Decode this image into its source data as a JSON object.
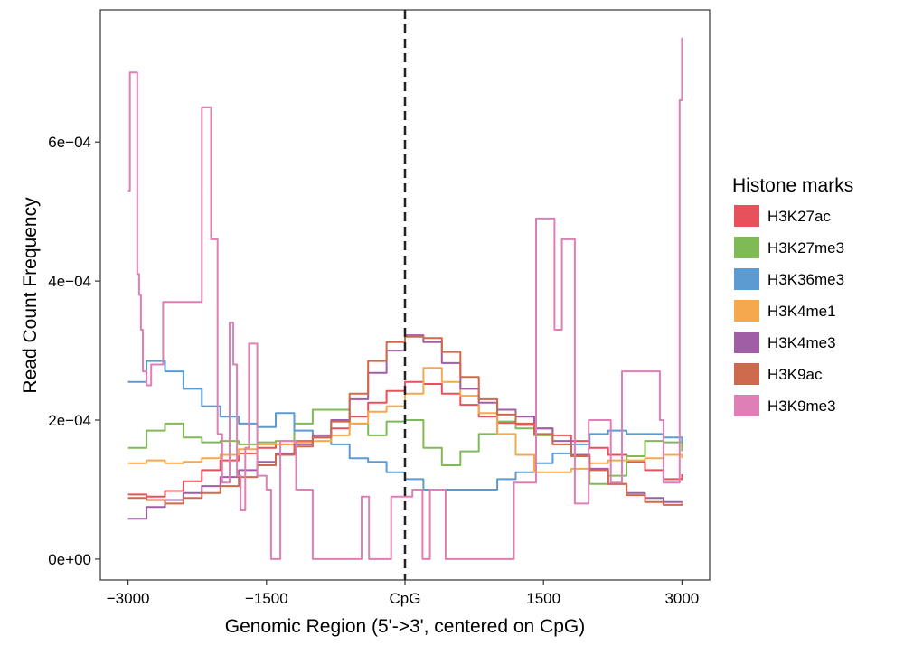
{
  "chart_data": {
    "type": "line",
    "line_shape": "step",
    "xlabel": "Genomic Region (5'->3', centered on CpG)",
    "ylabel": "Read Count Frequency",
    "xlim": [
      -3300,
      3300
    ],
    "ylim": [
      -3e-05,
      0.00079
    ],
    "x_ticks": [
      -3000,
      -1500,
      0,
      1500,
      3000
    ],
    "x_tick_labels": [
      "-3000",
      "-1500",
      "CpG",
      "1500",
      "3000"
    ],
    "y_ticks": [
      0,
      0.0002,
      0.0004,
      0.0006
    ],
    "y_tick_labels": [
      "0e+00",
      "2e-04",
      "4e-04",
      "6e-04"
    ],
    "grid": false,
    "vline": {
      "x": 0,
      "style": "dashed"
    },
    "legend": {
      "title": "Histone marks",
      "position": "right",
      "entries": [
        "H3K27ac",
        "H3K27me3",
        "H3K36me3",
        "H3K4me1",
        "H3K4me3",
        "H3K9ac",
        "H3K9me3"
      ]
    },
    "series": [
      {
        "name": "H3K27ac",
        "color": "#e8505b",
        "x": [
          -3000,
          -2800,
          -2600,
          -2400,
          -2200,
          -2000,
          -1800,
          -1600,
          -1400,
          -1200,
          -1000,
          -800,
          -600,
          -400,
          -200,
          0,
          200,
          400,
          600,
          800,
          1000,
          1200,
          1400,
          1600,
          1800,
          2000,
          2200,
          2400,
          2600,
          2800,
          3000
        ],
        "values": [
          9.3e-05,
          9e-05,
          9.8e-05,
          0.000112,
          0.000128,
          0.000142,
          0.000152,
          0.00016,
          0.000165,
          0.00017,
          0.000175,
          0.000188,
          0.000205,
          0.000225,
          0.000242,
          0.000255,
          0.000252,
          0.000238,
          0.000222,
          0.000205,
          0.000196,
          0.000193,
          0.000188,
          0.000178,
          0.00017,
          0.00016,
          0.00015,
          0.00014,
          0.000128,
          0.000115,
          0.000122
        ]
      },
      {
        "name": "H3K27me3",
        "color": "#80ba56",
        "x": [
          -3000,
          -2800,
          -2600,
          -2400,
          -2200,
          -2000,
          -1800,
          -1600,
          -1400,
          -1200,
          -1000,
          -800,
          -600,
          -400,
          -200,
          0,
          200,
          400,
          600,
          800,
          1000,
          1200,
          1400,
          1600,
          1800,
          2000,
          2200,
          2400,
          2600,
          2800,
          3000
        ],
        "values": [
          0.00016,
          0.000185,
          0.000195,
          0.000175,
          0.000168,
          0.00017,
          0.000165,
          0.000168,
          0.00017,
          0.000195,
          0.000215,
          0.000215,
          0.000195,
          0.000178,
          0.000198,
          0.0002,
          0.00016,
          0.000135,
          0.000155,
          0.00018,
          0.000198,
          0.000188,
          0.000178,
          0.000165,
          0.000148,
          0.000108,
          0.00012,
          0.000148,
          0.00017,
          0.000168,
          0.000155
        ]
      },
      {
        "name": "H3K36me3",
        "color": "#5b9bd1",
        "x": [
          -3000,
          -2800,
          -2600,
          -2400,
          -2200,
          -2000,
          -1800,
          -1600,
          -1400,
          -1200,
          -1000,
          -800,
          -600,
          -400,
          -200,
          0,
          200,
          400,
          600,
          800,
          1000,
          1200,
          1400,
          1600,
          1800,
          2000,
          2200,
          2400,
          2600,
          2800,
          3000
        ],
        "values": [
          0.000255,
          0.000285,
          0.00027,
          0.000245,
          0.00022,
          0.000205,
          0.000195,
          0.00019,
          0.00021,
          0.000185,
          0.000175,
          0.000165,
          0.000145,
          0.00014,
          0.000125,
          0.000115,
          0.0001,
          0.0001,
          0.0001,
          0.0001,
          0.000115,
          0.000125,
          0.000138,
          0.000152,
          0.000165,
          0.00018,
          0.000185,
          0.00018,
          0.00018,
          0.000175,
          0.000168
        ]
      },
      {
        "name": "H3K4me1",
        "color": "#f5a84c",
        "x": [
          -3000,
          -2800,
          -2600,
          -2400,
          -2200,
          -2000,
          -1800,
          -1600,
          -1400,
          -1200,
          -1000,
          -800,
          -600,
          -400,
          -200,
          0,
          200,
          400,
          600,
          800,
          1000,
          1200,
          1400,
          1600,
          1800,
          2000,
          2200,
          2400,
          2600,
          2800,
          3000
        ],
        "values": [
          0.000138,
          0.000142,
          0.000138,
          0.00014,
          0.000145,
          0.00015,
          0.000158,
          0.000165,
          0.000165,
          0.000168,
          0.00017,
          0.000178,
          0.000195,
          0.000212,
          0.00022,
          0.000238,
          0.000275,
          0.000255,
          0.000235,
          0.00021,
          0.00018,
          0.00015,
          0.000125,
          0.000125,
          0.00013,
          0.000138,
          0.000142,
          0.000142,
          0.000145,
          0.00015,
          0.000145
        ]
      },
      {
        "name": "H3K4me3",
        "color": "#a05fa5",
        "x": [
          -3000,
          -2800,
          -2600,
          -2400,
          -2200,
          -2000,
          -1800,
          -1600,
          -1400,
          -1200,
          -1000,
          -800,
          -600,
          -400,
          -200,
          0,
          200,
          400,
          600,
          800,
          1000,
          1200,
          1400,
          1600,
          1800,
          2000,
          2200,
          2400,
          2600,
          2800,
          3000
        ],
        "values": [
          5.8e-05,
          7.5e-05,
          8.5e-05,
          9.5e-05,
          0.000105,
          0.000118,
          0.000128,
          0.00014,
          0.000152,
          0.000165,
          0.000178,
          0.0002,
          0.00023,
          0.000268,
          0.0003,
          0.000322,
          0.000312,
          0.000282,
          0.000245,
          0.000225,
          0.000215,
          0.000205,
          0.000188,
          0.00017,
          0.00015,
          0.00013,
          0.000108,
          9.5e-05,
          8.8e-05,
          8.2e-05,
          8.3e-05
        ]
      },
      {
        "name": "H3K9ac",
        "color": "#cd6a4b",
        "x": [
          -3000,
          -2800,
          -2600,
          -2400,
          -2200,
          -2000,
          -1800,
          -1600,
          -1400,
          -1200,
          -1000,
          -800,
          -600,
          -400,
          -200,
          0,
          200,
          400,
          600,
          800,
          1000,
          1200,
          1400,
          1600,
          1800,
          2000,
          2200,
          2400,
          2600,
          2800,
          3000
        ],
        "values": [
          8.8e-05,
          8.5e-05,
          8e-05,
          8.8e-05,
          9.5e-05,
          0.000105,
          0.000118,
          0.000135,
          0.00015,
          0.000162,
          0.000175,
          0.000198,
          0.000238,
          0.000285,
          0.000312,
          0.00032,
          0.000318,
          0.000298,
          0.000262,
          0.00023,
          0.000208,
          0.000195,
          0.00018,
          0.000165,
          0.000148,
          0.000128,
          0.000108,
          9.2e-05,
          8.2e-05,
          7.8e-05,
          8e-05
        ]
      },
      {
        "name": "H3K9me3",
        "color": "#de7fb5",
        "x": [
          -3000,
          -2980,
          -2900,
          -2880,
          -2860,
          -2840,
          -2800,
          -2750,
          -2700,
          -2620,
          -2580,
          -2540,
          -2480,
          -2380,
          -2300,
          -2200,
          -2130,
          -2100,
          -2030,
          -1980,
          -1900,
          -1860,
          -1820,
          -1780,
          -1730,
          -1690,
          -1600,
          -1500,
          -1450,
          -1380,
          -1350,
          -1300,
          -1180,
          -1100,
          -1000,
          -950,
          -500,
          -470,
          -430,
          -390,
          -330,
          -240,
          -150,
          -80,
          0,
          60,
          80,
          130,
          190,
          270,
          340,
          400,
          440,
          520,
          570,
          620,
          690,
          750,
          810,
          880,
          940,
          980,
          1020,
          1060,
          1100,
          1180,
          1260,
          1340,
          1380,
          1420,
          1450,
          1500,
          1560,
          1620,
          1700,
          1760,
          1840,
          1890,
          1950,
          1990,
          2060,
          2090,
          2160,
          2230,
          2300,
          2330,
          2350,
          2420,
          2480,
          2530,
          2620,
          2700,
          2760,
          2800,
          2840,
          2880,
          2920,
          2950,
          2975,
          3000
        ],
        "values": [
          0.00053,
          0.0007,
          0.00041,
          0.00038,
          0.00033,
          0.00027,
          0.00025,
          0.00028,
          0.00028,
          0.00037,
          0.00037,
          0.00037,
          0.00037,
          0.00037,
          0.00037,
          0.00065,
          0.00065,
          0.00046,
          0.00018,
          0.00011,
          0.00034,
          0.00028,
          0.00012,
          7e-05,
          0.00016,
          0.00031,
          0.00012,
          0.0001,
          0,
          0,
          0.00017,
          0.00017,
          0.0001,
          0.0001,
          0,
          0,
          0,
          9e-05,
          9e-05,
          0,
          0,
          0,
          9e-05,
          9e-05,
          9e-05,
          9e-05,
          0.0001,
          0.0001,
          0,
          0.0001,
          0.0001,
          0.0001,
          0,
          0,
          0,
          0,
          0,
          0,
          0,
          0,
          0,
          0,
          0,
          0,
          0,
          0.00011,
          0.00011,
          0.00011,
          0.00011,
          0.00049,
          0.00049,
          0.00049,
          0.00049,
          0.00033,
          0.00046,
          0.00046,
          8e-05,
          8e-05,
          8e-05,
          0.0002,
          0.0002,
          0.0002,
          0.0002,
          0.00011,
          0.00011,
          0.00011,
          0.00027,
          0.00027,
          0.00027,
          0.00027,
          0.00027,
          0.00027,
          0.0002,
          0.00011,
          0.00011,
          0.00011,
          0.00011,
          0.00011,
          0.00066,
          0.00075
        ]
      }
    ]
  }
}
